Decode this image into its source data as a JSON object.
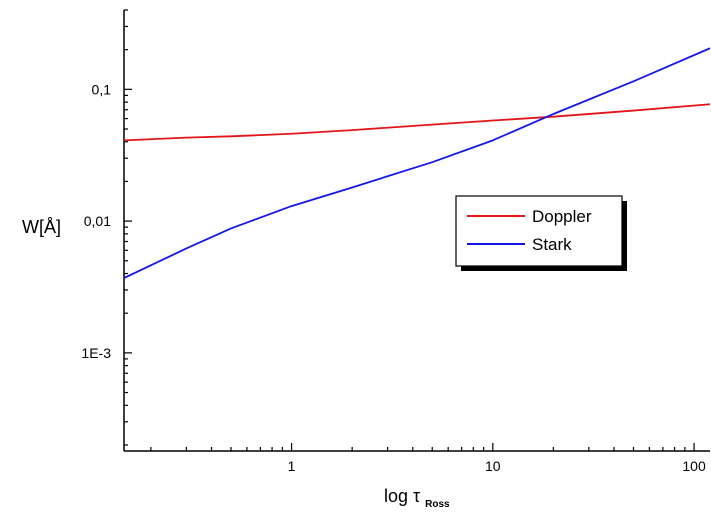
{
  "chart_data": {
    "type": "line",
    "title": "",
    "xlabel": {
      "prefix": "log τ",
      "subscript": "Ross"
    },
    "ylabel": "W[Å]",
    "x_scale": "log",
    "y_scale": "log",
    "xlim": [
      0.147,
      120
    ],
    "ylim": [
      0.00018,
      0.4
    ],
    "grid": false,
    "legend_position": "right-center",
    "x_ticks": [
      {
        "value": 1,
        "label": "1"
      },
      {
        "value": 10,
        "label": "10"
      },
      {
        "value": 100,
        "label": "100"
      }
    ],
    "y_ticks": [
      {
        "value": 0.1,
        "label": "0,1"
      },
      {
        "value": 0.01,
        "label": "0,01"
      },
      {
        "value": 0.001,
        "label": "1E-3"
      }
    ],
    "series": [
      {
        "name": "Doppler",
        "color": "#e0161b",
        "x": [
          0.147,
          0.3,
          0.5,
          1,
          2,
          5,
          10,
          20,
          50,
          120
        ],
        "y": [
          0.041,
          0.043,
          0.044,
          0.046,
          0.049,
          0.054,
          0.058,
          0.062,
          0.069,
          0.077
        ]
      },
      {
        "name": "Stark",
        "color": "#1318e6",
        "x": [
          0.147,
          0.3,
          0.5,
          1,
          2,
          5,
          10,
          20,
          50,
          120
        ],
        "y": [
          0.0037,
          0.0062,
          0.0088,
          0.013,
          0.018,
          0.028,
          0.041,
          0.065,
          0.115,
          0.205
        ]
      }
    ]
  }
}
